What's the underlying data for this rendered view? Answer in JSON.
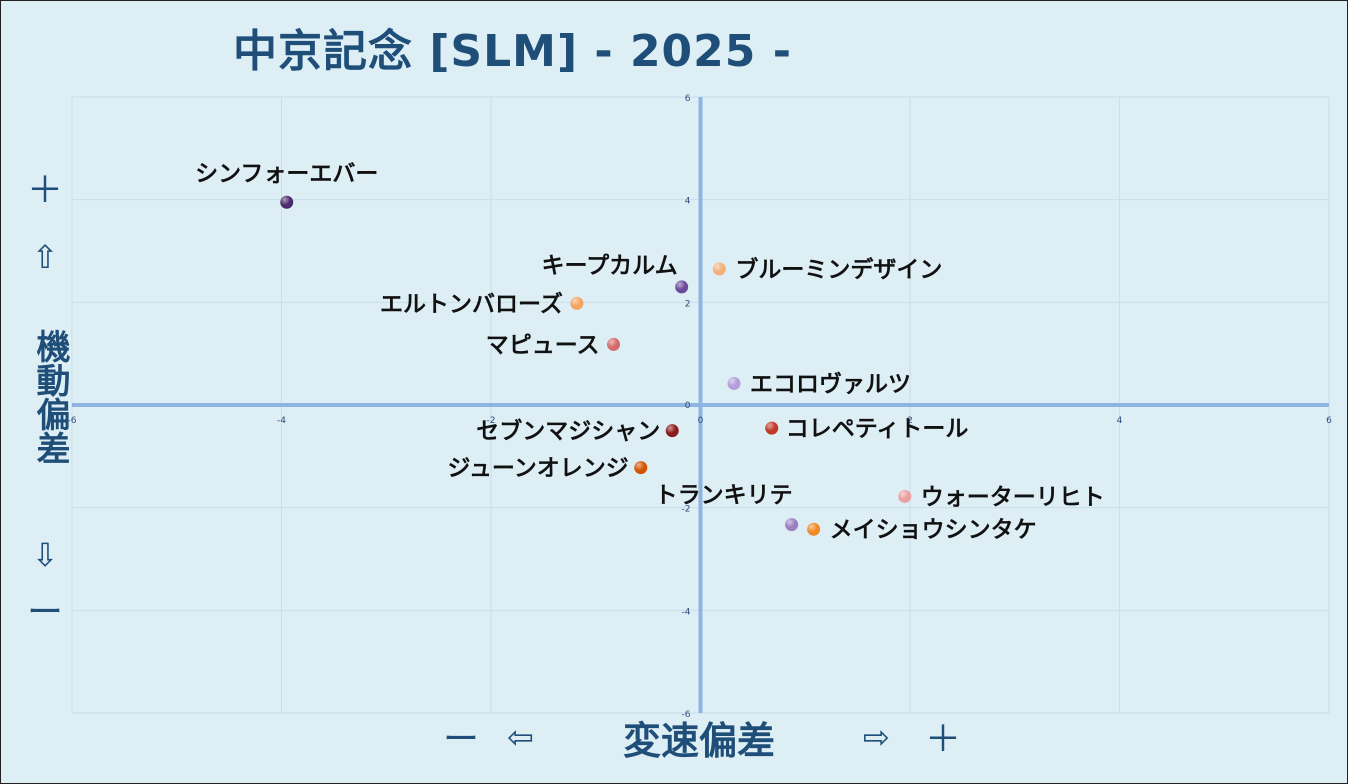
{
  "title": "中京記念 [SLM]  - 2025 -",
  "y_axis": {
    "plus": "＋",
    "up_arrow": "⇧",
    "label": "機動偏差",
    "down_arrow": "⇩",
    "minus": "ー"
  },
  "x_axis": {
    "minus": "ー",
    "left_arrow": "⇦",
    "label": "変速偏差",
    "right_arrow": "⇨",
    "plus": "＋"
  },
  "chart_data": {
    "type": "scatter",
    "xlim": [
      -6,
      6
    ],
    "ylim": [
      -6,
      6
    ],
    "grid": true,
    "x_ticks": [
      "-6",
      "-4",
      "-2",
      "0",
      "2",
      "4",
      "6"
    ],
    "y_ticks": [
      "6",
      "4",
      "2",
      "0",
      "-2",
      "-4",
      "-6"
    ],
    "points": [
      {
        "label": "シンフォーエバー",
        "x": -3.95,
        "y": 3.95,
        "color": "#4b2a6e"
      },
      {
        "label": "キープカルム",
        "x": -0.18,
        "y": 2.3,
        "color": "#6a4a9c"
      },
      {
        "label": "ブルーミンデザイン",
        "x": 0.18,
        "y": 2.65,
        "color": "#f4b07a"
      },
      {
        "label": "エルトンバローズ",
        "x": -1.18,
        "y": 1.98,
        "color": "#f4a460"
      },
      {
        "label": "マピュース",
        "x": -0.83,
        "y": 1.18,
        "color": "#d46a6a"
      },
      {
        "label": "エコロヴァルツ",
        "x": 0.32,
        "y": 0.42,
        "color": "#b39ddb"
      },
      {
        "label": "セブンマジシャン",
        "x": -0.27,
        "y": -0.5,
        "color": "#8b1a1a"
      },
      {
        "label": "コレペティトール",
        "x": 0.68,
        "y": -0.45,
        "color": "#c0392b"
      },
      {
        "label": "ジューンオレンジ",
        "x": -0.57,
        "y": -1.22,
        "color": "#d35400"
      },
      {
        "label": "トランキリテ",
        "x": 0.87,
        "y": -2.33,
        "color": "#9b7fc0"
      },
      {
        "label": "ウォーターリヒト",
        "x": 1.95,
        "y": -1.78,
        "color": "#e8a0a0"
      },
      {
        "label": "メイショウシンタケ",
        "x": 1.08,
        "y": -2.42,
        "color": "#f08a24"
      }
    ]
  }
}
